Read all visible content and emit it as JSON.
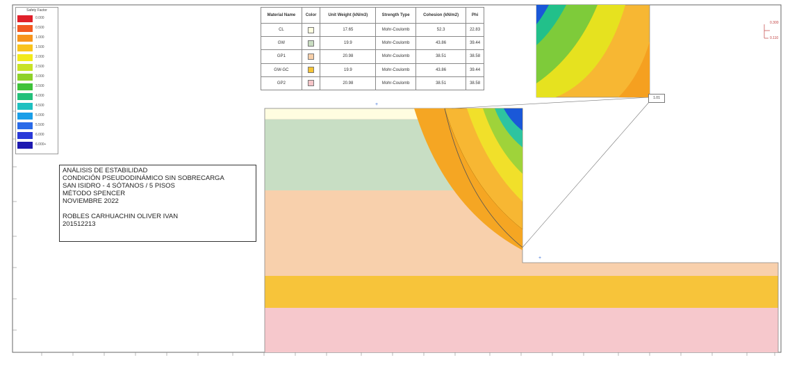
{
  "legend": {
    "title": "Safety Factor",
    "rows": [
      {
        "value": "0.000",
        "color": "#e0202a"
      },
      {
        "value": "0.500",
        "color": "#f25a22"
      },
      {
        "value": "1.000",
        "color": "#f7941d"
      },
      {
        "value": "1.500",
        "color": "#f9c31c"
      },
      {
        "value": "2.000",
        "color": "#f2ea1a"
      },
      {
        "value": "2.500",
        "color": "#c8e226"
      },
      {
        "value": "3.000",
        "color": "#8fd12a"
      },
      {
        "value": "3.500",
        "color": "#3fc23a"
      },
      {
        "value": "4.000",
        "color": "#23c07a"
      },
      {
        "value": "4.500",
        "color": "#1ec0c0"
      },
      {
        "value": "5.000",
        "color": "#1a9ee8"
      },
      {
        "value": "5.500",
        "color": "#2a6ae8"
      },
      {
        "value": "6.000",
        "color": "#2a3ad8"
      },
      {
        "value": "6.000+",
        "color": "#1e1ab0"
      }
    ]
  },
  "info": {
    "line1": "ANÁLISIS DE ESTABILIDAD",
    "line2": "CONDICIÓN PSEUDODINÁMICO SIN SOBRECARGA",
    "line3": "SAN ISIDRO - 4 SÓTANOS / 5 PISOS",
    "line4": "MÉTODO SPENCER",
    "line5": "NOVIEMBRE 2022",
    "line6": "ROBLES CARHUACHIN OLIVER IVAN",
    "line7": "201512213"
  },
  "table": {
    "headers": [
      "Material Name",
      "Color",
      "Unit Weight (kN/m3)",
      "Strength Type",
      "Cohesion (kN/m2)",
      "Phi"
    ],
    "rows": [
      {
        "name": "CL",
        "color": "#ffffe0",
        "weight": "17.65",
        "type": "Mohr-Coulomb",
        "cohesion": "52.3",
        "phi": "22.83"
      },
      {
        "name": "GW",
        "color": "#c8dcc0",
        "weight": "19.9",
        "type": "Mohr-Coulomb",
        "cohesion": "43.86",
        "phi": "39.44"
      },
      {
        "name": "GP1",
        "color": "#f7cfa9",
        "weight": "20.98",
        "type": "Mohr-Coulomb",
        "cohesion": "38.51",
        "phi": "38.58"
      },
      {
        "name": "GW-GC",
        "color": "#f6c435",
        "weight": "19.9",
        "type": "Mohr-Coulomb",
        "cohesion": "43.86",
        "phi": "39.44"
      },
      {
        "name": "GP2",
        "color": "#f5c5c8",
        "weight": "20.98",
        "type": "Mohr-Coulomb",
        "cohesion": "38.51",
        "phi": "38.58"
      }
    ]
  },
  "fos_label": "1.01",
  "seismic": {
    "top": "0.300",
    "bottom": "0.110"
  },
  "colors": {
    "layer_cl": "#fffde0",
    "layer_gw": "#c8dec4",
    "layer_gp1": "#f8d0ac",
    "layer_gwgc": "#f7c43a",
    "layer_gp2": "#f6c8cc",
    "slip_orange": "#f5a623"
  }
}
